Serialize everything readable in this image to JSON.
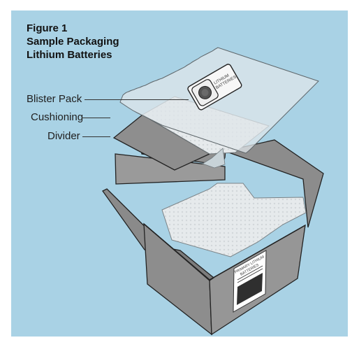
{
  "figure": {
    "label": "Figure 1",
    "title_line_1": "Sample Packaging",
    "title_line_2": "Lithium Batteries"
  },
  "callouts": {
    "blister_pack": "Blister Pack",
    "cushioning": "Cushioning",
    "divider": "Divider"
  },
  "battery_label": {
    "line_1": "LITHIUM",
    "line_2": "BATTERIES"
  },
  "box_label": {
    "line_1": "PRIMARY LITHIUM",
    "line_2": "BATTERIES"
  },
  "colors": {
    "background": "#a9d2e5",
    "box": "#959595",
    "box_dark": "#6f6f6f",
    "divider": "#8e8e8e",
    "cushioning": "#e4e8ea"
  }
}
